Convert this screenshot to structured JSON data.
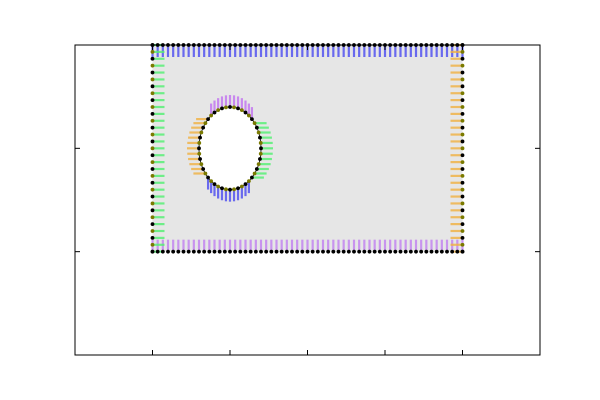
{
  "chart_data": {
    "type": "diagram",
    "title": "",
    "xlabel": "",
    "ylabel": "",
    "xlim": [
      -1,
      5
    ],
    "ylim": [
      -1,
      2
    ],
    "x_ticks": [
      0,
      1,
      2,
      3,
      4
    ],
    "y_ticks": [
      0,
      1
    ],
    "tick_labels_shown": false,
    "grid": false,
    "legend": "none",
    "plate": {
      "x_min": 0,
      "x_max": 4,
      "y_min": 0,
      "y_max": 2,
      "fill": "#e6e6e6"
    },
    "hole": {
      "cx": 1,
      "cy": 1,
      "r": 0.4,
      "fill": "#ffffff"
    },
    "boundary_markers": {
      "outer_top": 60,
      "outer_bottom": 60,
      "outer_left": 30,
      "outer_right": 30,
      "hole": 48
    },
    "colors": {
      "top": "#4a4af0",
      "bottom": "#c080f0",
      "left": "#50f070",
      "right": "#f0b040",
      "hole_top": "#c070f0",
      "hole_bottom": "#4a4af0",
      "hole_left": "#f0b040",
      "hole_right": "#50f070",
      "node": "#000000",
      "node_alt": "#7a7a00"
    }
  }
}
